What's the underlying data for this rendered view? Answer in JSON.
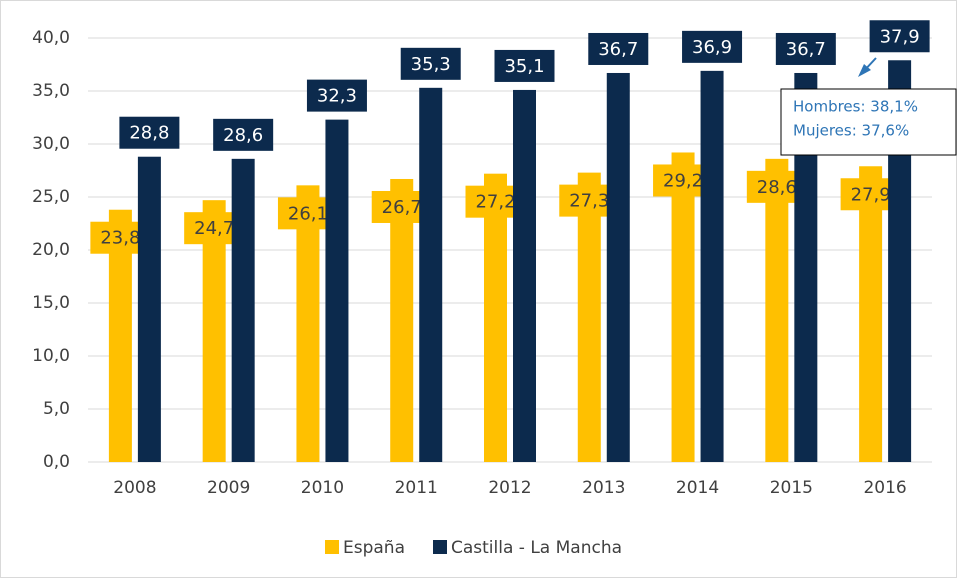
{
  "chart_data": {
    "type": "bar",
    "categories": [
      "2008",
      "2009",
      "2010",
      "2011",
      "2012",
      "2013",
      "2014",
      "2015",
      "2016"
    ],
    "series": [
      {
        "name": "España",
        "color": "#ffc000",
        "values": [
          23.8,
          24.7,
          26.1,
          26.7,
          27.2,
          27.3,
          29.2,
          28.6,
          27.9
        ],
        "value_labels": [
          "23,8",
          "24,7",
          "26,1",
          "26,7",
          "27,2",
          "27,3",
          "29,2",
          "28,6",
          "27,9"
        ]
      },
      {
        "name": "Castilla - La Mancha",
        "color": "#0c2a4d",
        "values": [
          28.8,
          28.6,
          32.3,
          35.3,
          35.1,
          36.7,
          36.9,
          36.7,
          37.9
        ],
        "value_labels": [
          "28,8",
          "28,6",
          "32,3",
          "35,3",
          "35,1",
          "36,7",
          "36,9",
          "36,7",
          "37,9"
        ]
      }
    ],
    "ylim": [
      0,
      40
    ],
    "yticks": [
      {
        "value": 0,
        "label": "0,0"
      },
      {
        "value": 5,
        "label": "5,0"
      },
      {
        "value": 10,
        "label": "10,0"
      },
      {
        "value": 15,
        "label": "15,0"
      },
      {
        "value": 20,
        "label": "20,0"
      },
      {
        "value": 25,
        "label": "25,0"
      },
      {
        "value": 30,
        "label": "30,0"
      },
      {
        "value": 35,
        "label": "35,0"
      },
      {
        "value": 40,
        "label": "40,0"
      }
    ],
    "grid": true,
    "legend": "bottom",
    "annotations": [
      "Hombres: 38,1%",
      "Mujeres: 37,6%"
    ]
  }
}
